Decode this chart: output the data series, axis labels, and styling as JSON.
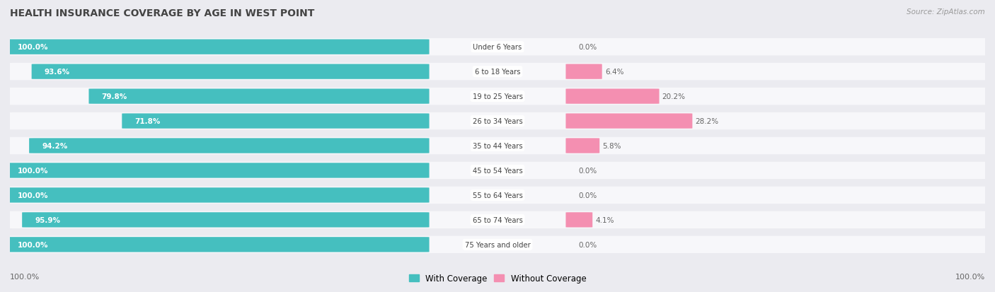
{
  "title": "HEALTH INSURANCE COVERAGE BY AGE IN WEST POINT",
  "source": "Source: ZipAtlas.com",
  "categories": [
    "Under 6 Years",
    "6 to 18 Years",
    "19 to 25 Years",
    "26 to 34 Years",
    "35 to 44 Years",
    "45 to 54 Years",
    "55 to 64 Years",
    "65 to 74 Years",
    "75 Years and older"
  ],
  "with_coverage": [
    100.0,
    93.6,
    79.8,
    71.8,
    94.2,
    100.0,
    100.0,
    95.9,
    100.0
  ],
  "without_coverage": [
    0.0,
    6.4,
    20.2,
    28.2,
    5.8,
    0.0,
    0.0,
    4.1,
    0.0
  ],
  "color_with": "#45BFBF",
  "color_without": "#F48FB1",
  "bg_color": "#ebebf0",
  "bar_bg": "#f7f7fa",
  "title_color": "#444444",
  "source_color": "#999999",
  "left_label_color": "#ffffff",
  "right_label_color": "#666666",
  "cat_label_color": "#444444"
}
